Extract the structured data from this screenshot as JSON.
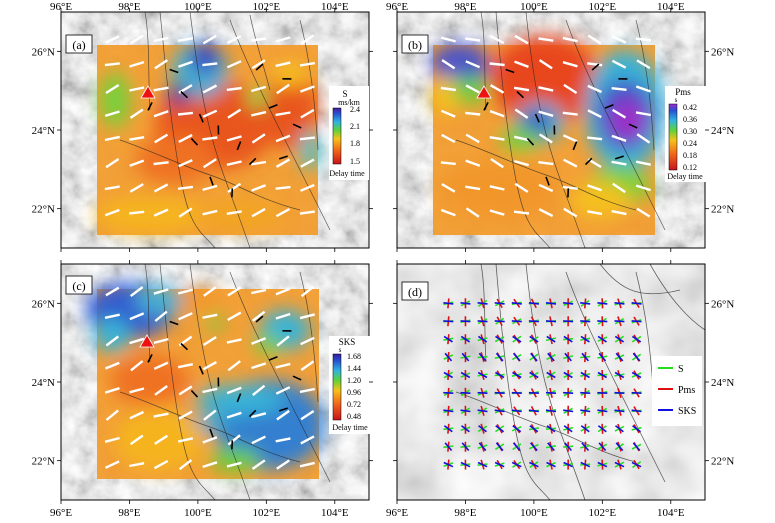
{
  "figure": {
    "lon_ticks": [
      "96°E",
      "98°E",
      "100°E",
      "102°E",
      "104°E"
    ],
    "lat_ticks": [
      "22°N",
      "24°N",
      "26°N"
    ],
    "lon_range": [
      96,
      105
    ],
    "lat_range": [
      21,
      27
    ]
  },
  "panels": [
    {
      "id": "a",
      "label": "(a)",
      "type": "anisotropy-map",
      "field": "S",
      "colorbar": {
        "title_line1": "S",
        "title_line2": "ms/km",
        "ticks": [
          "2.4",
          "2.1",
          "1.8",
          "1.5"
        ],
        "footer": "Delay time",
        "range": [
          1.5,
          2.4
        ]
      },
      "station": {
        "lon": 98.5,
        "lat": 25.2
      },
      "grid_region": {
        "lon": [
          97.2,
          103.5
        ],
        "lat": [
          21.6,
          26.6
        ]
      },
      "dominant_fast_direction_deg": -20
    },
    {
      "id": "b",
      "label": "(b)",
      "type": "anisotropy-map",
      "field": "Pms",
      "colorbar": {
        "title_line1": "Pms",
        "title_line2": "s",
        "ticks": [
          "0.42",
          "0.36",
          "0.30",
          "0.24",
          "0.18",
          "0.12"
        ],
        "footer": "Delay time",
        "range": [
          0.12,
          0.42
        ]
      },
      "station": {
        "lon": 98.5,
        "lat": 25.2
      },
      "grid_region": {
        "lon": [
          97.2,
          103.5
        ],
        "lat": [
          21.6,
          26.6
        ]
      },
      "dominant_fast_direction_deg": 20
    },
    {
      "id": "c",
      "label": "(c)",
      "type": "anisotropy-map",
      "field": "SKS",
      "colorbar": {
        "title_line1": "SKS",
        "title_line2": "s",
        "ticks": [
          "1.68",
          "1.44",
          "1.20",
          "0.96",
          "0.72",
          "0.48"
        ],
        "footer": "Delay time",
        "range": [
          0.48,
          1.68
        ]
      },
      "station": {
        "lon": 98.5,
        "lat": 25.2
      },
      "grid_region": {
        "lon": [
          97.2,
          103.5
        ],
        "lat": [
          21.6,
          26.6
        ]
      },
      "dominant_fast_direction_deg": -25
    },
    {
      "id": "d",
      "label": "(d)",
      "type": "comparison-map",
      "legend": [
        {
          "name": "S",
          "color": "#22dd22"
        },
        {
          "name": "Pms",
          "color": "#dd1111"
        },
        {
          "name": "SKS",
          "color": "#1111dd"
        }
      ],
      "grid_region": {
        "lon": [
          97.5,
          103.0
        ],
        "lat": [
          21.9,
          26.0
        ]
      }
    }
  ],
  "colors": {
    "station": "#ee1111",
    "fast_direction_bar": "#ffffff",
    "observed_bar": "#000000"
  }
}
